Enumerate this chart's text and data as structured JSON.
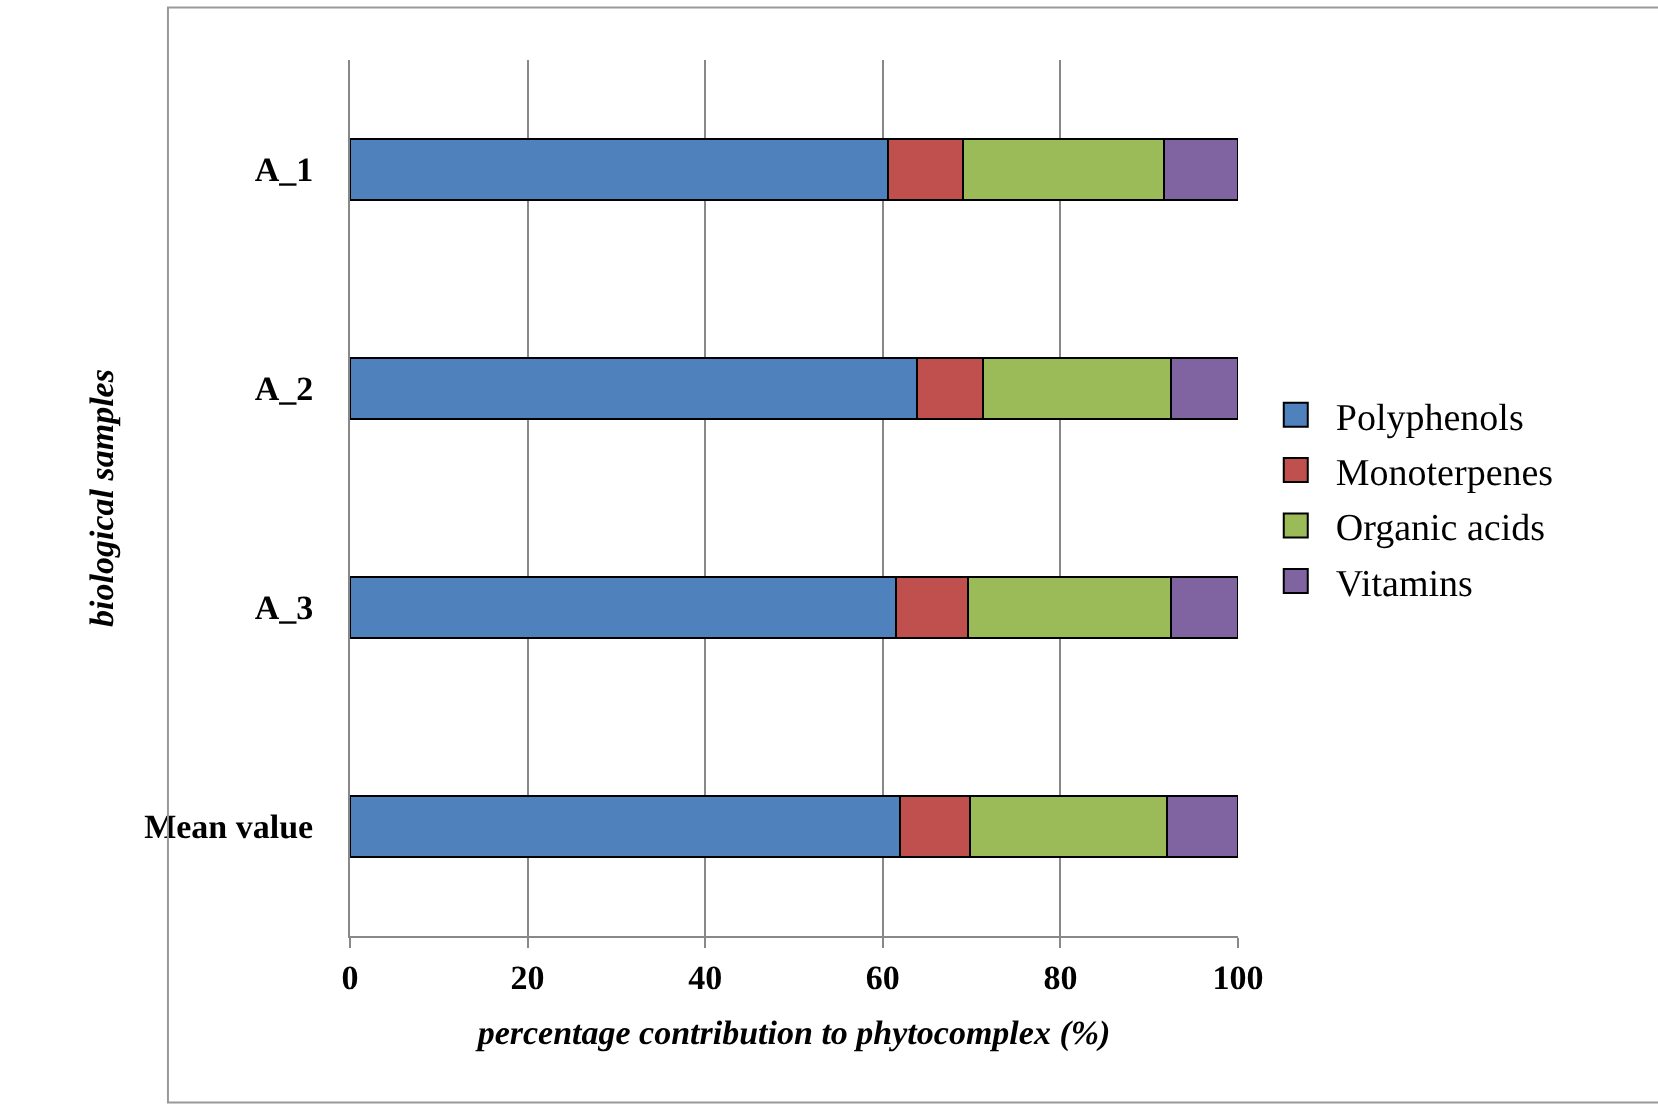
{
  "chart_data": {
    "type": "bar",
    "orientation": "horizontal",
    "stacked": true,
    "categories": [
      "A_1",
      "A_2",
      "A_3",
      "Mean value"
    ],
    "xlabel": "percentage contribution to phytocomplex (%)",
    "ylabel": "biological samples",
    "xlim": [
      0,
      100
    ],
    "xticks": [
      0,
      20,
      40,
      60,
      80,
      100
    ],
    "grid": "x",
    "legend": "right",
    "series": [
      {
        "name": "Polyphenols",
        "color": "#4f81bd",
        "values": [
          60.6,
          63.9,
          61.5,
          61.9
        ]
      },
      {
        "name": "Monoterpenes",
        "color": "#c0504d",
        "values": [
          8.4,
          7.4,
          8.1,
          7.9
        ]
      },
      {
        "name": "Organic acids",
        "color": "#9bbb59",
        "values": [
          22.7,
          21.2,
          22.9,
          22.2
        ]
      },
      {
        "name": "Vitamins",
        "color": "#8064a2",
        "values": [
          8.3,
          7.5,
          7.5,
          8.0
        ]
      }
    ]
  }
}
